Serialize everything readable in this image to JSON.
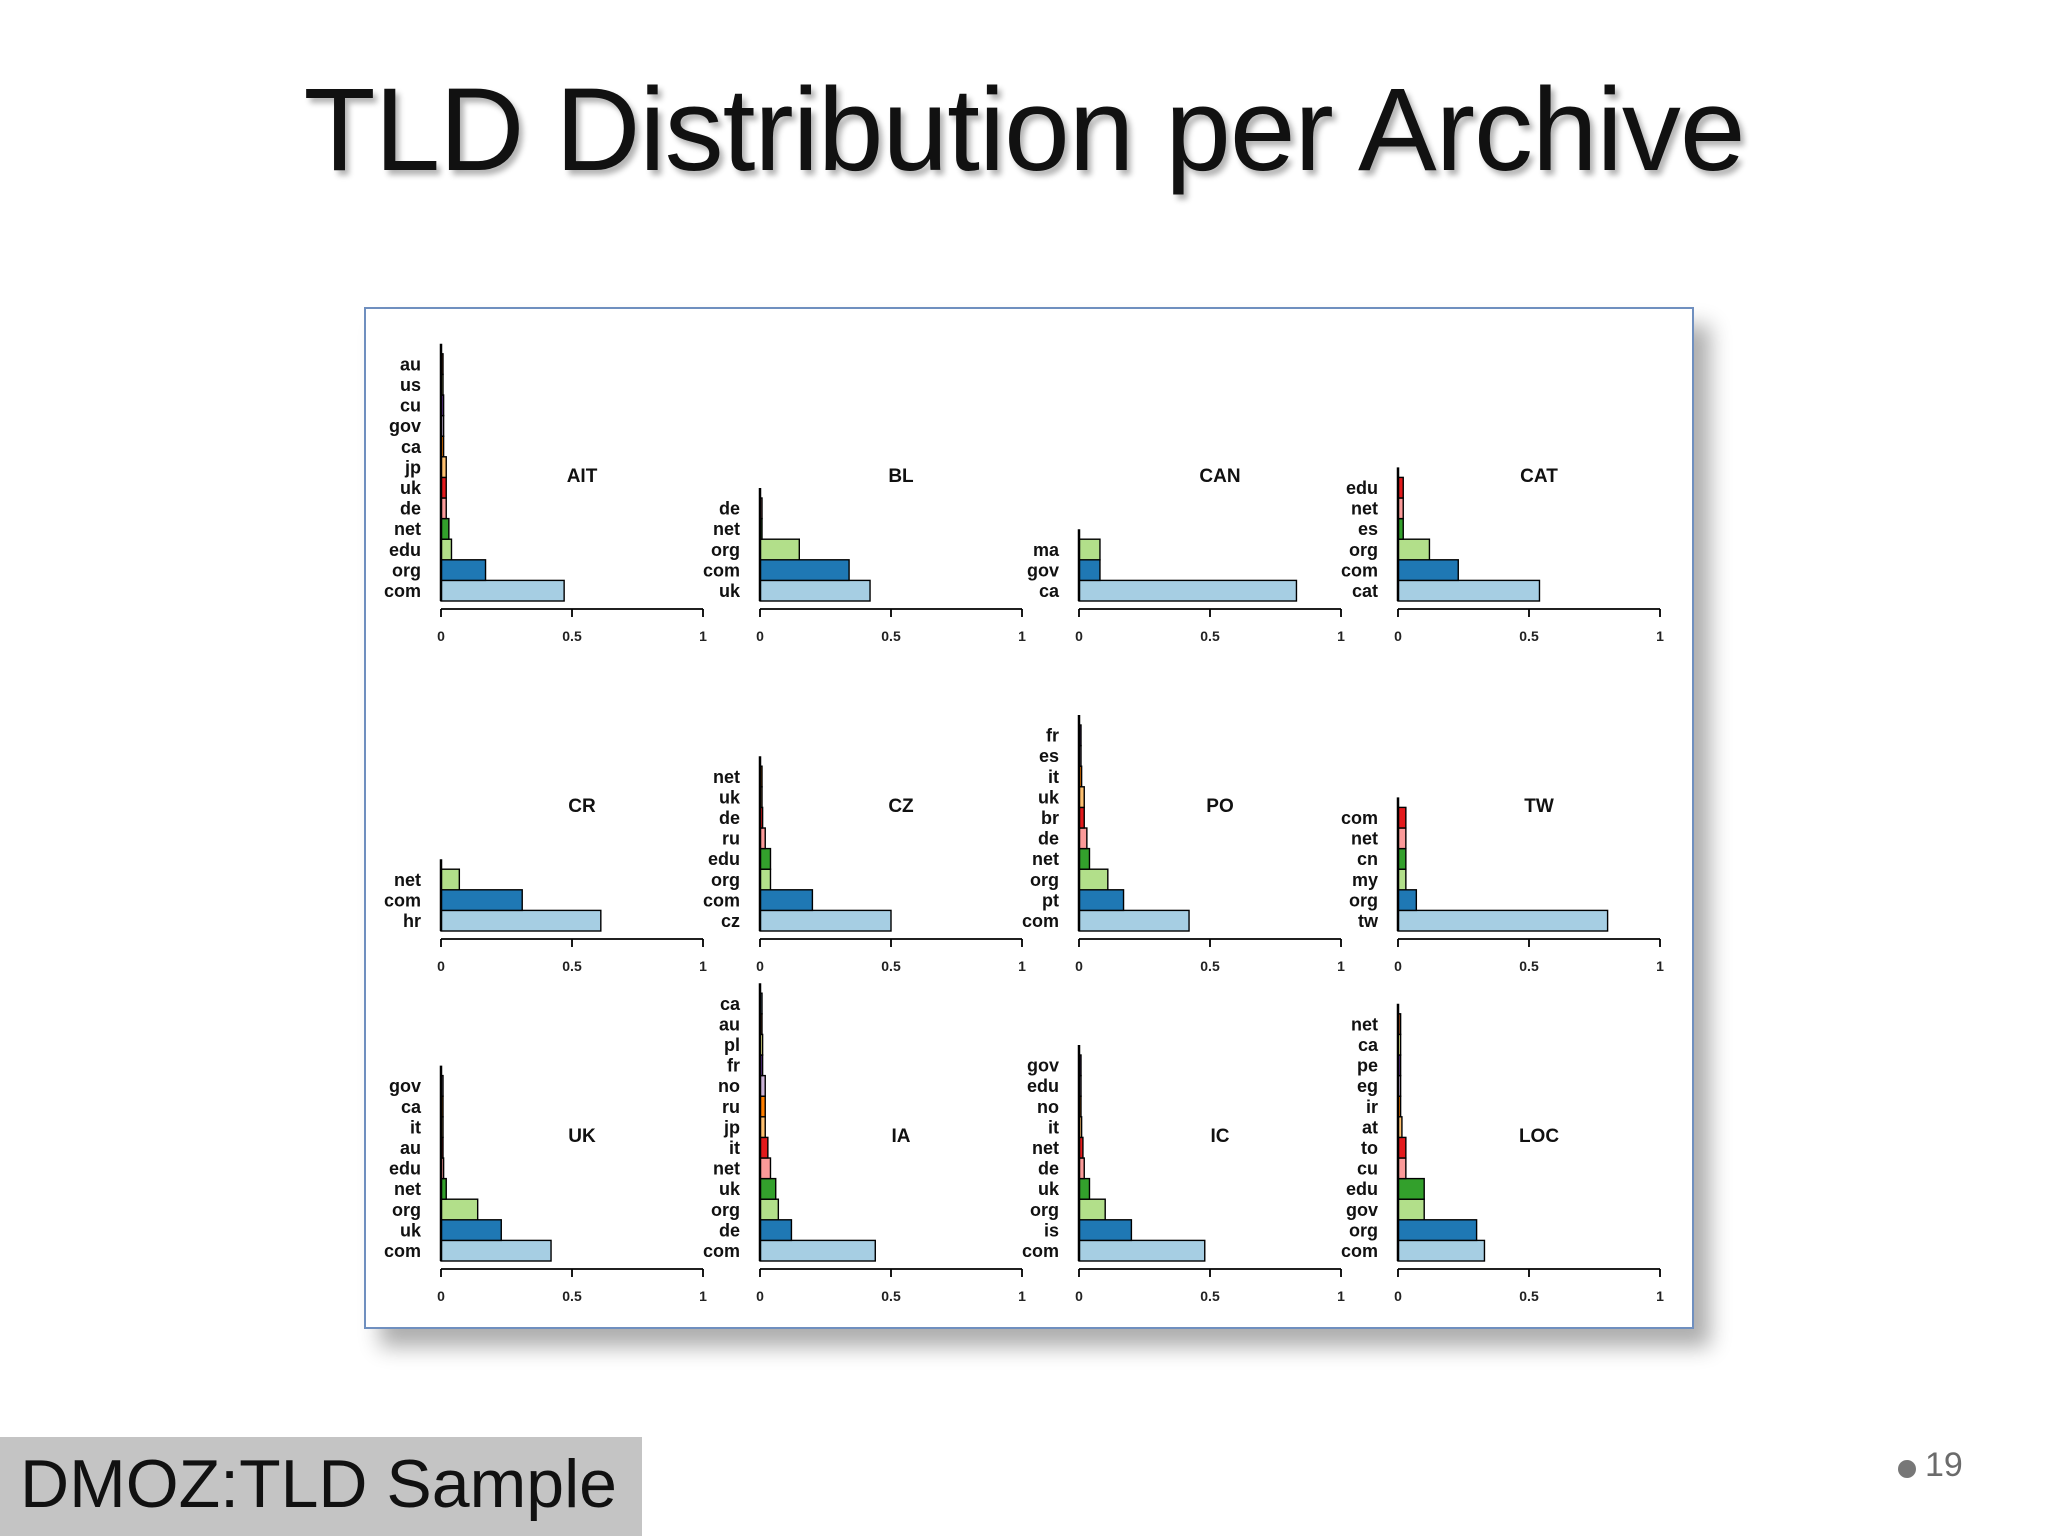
{
  "title": "TLD Distribution per Archive",
  "caption": "DMOZ:TLD Sample",
  "page_number": "19",
  "colors": {
    "frame_border": "#6f8fbf",
    "palette": [
      "#a6cee3",
      "#1f78b4",
      "#b2df8a",
      "#33a02c",
      "#fb9a99",
      "#e31a1c",
      "#fdbf6f",
      "#ff7f00",
      "#cab2d6",
      "#6a3d9a",
      "#ffff99",
      "#b15928"
    ]
  },
  "chart_data": [
    {
      "type": "bar",
      "orientation": "horizontal",
      "title": "AIT",
      "xlim": [
        0,
        1
      ],
      "xticks": [
        "0",
        "0.5",
        "1"
      ],
      "categories": [
        "com",
        "org",
        "edu",
        "net",
        "de",
        "uk",
        "jp",
        "ca",
        "gov",
        "cu",
        "us",
        "au"
      ],
      "values": [
        0.47,
        0.17,
        0.04,
        0.03,
        0.02,
        0.02,
        0.02,
        0.01,
        0.01,
        0.01,
        0.005,
        0.005
      ]
    },
    {
      "type": "bar",
      "orientation": "horizontal",
      "title": "BL",
      "xlim": [
        0,
        1
      ],
      "xticks": [
        "0",
        "0.5",
        "1"
      ],
      "categories": [
        "uk",
        "com",
        "org",
        "net",
        "de"
      ],
      "values": [
        0.42,
        0.34,
        0.15,
        0.005,
        0.005
      ]
    },
    {
      "type": "bar",
      "orientation": "horizontal",
      "title": "CAN",
      "xlim": [
        0,
        1
      ],
      "xticks": [
        "0",
        "0.5",
        "1"
      ],
      "categories": [
        "ca",
        "gov",
        "ma"
      ],
      "values": [
        0.83,
        0.08,
        0.08
      ]
    },
    {
      "type": "bar",
      "orientation": "horizontal",
      "title": "CAT",
      "xlim": [
        0,
        1
      ],
      "xticks": [
        "0",
        "0.5",
        "1"
      ],
      "categories": [
        "cat",
        "com",
        "org",
        "es",
        "net",
        "edu"
      ],
      "values": [
        0.54,
        0.23,
        0.12,
        0.02,
        0.02,
        0.02
      ]
    },
    {
      "type": "bar",
      "orientation": "horizontal",
      "title": "CR",
      "xlim": [
        0,
        1
      ],
      "xticks": [
        "0",
        "0.5",
        "1"
      ],
      "categories": [
        "hr",
        "com",
        "net"
      ],
      "values": [
        0.61,
        0.31,
        0.07
      ]
    },
    {
      "type": "bar",
      "orientation": "horizontal",
      "title": "CZ",
      "xlim": [
        0,
        1
      ],
      "xticks": [
        "0",
        "0.5",
        "1"
      ],
      "categories": [
        "cz",
        "com",
        "org",
        "edu",
        "ru",
        "de",
        "uk",
        "net"
      ],
      "values": [
        0.5,
        0.2,
        0.04,
        0.04,
        0.02,
        0.01,
        0.005,
        0.005
      ]
    },
    {
      "type": "bar",
      "orientation": "horizontal",
      "title": "PO",
      "xlim": [
        0,
        1
      ],
      "xticks": [
        "0",
        "0.5",
        "1"
      ],
      "categories": [
        "com",
        "pt",
        "org",
        "net",
        "de",
        "br",
        "uk",
        "it",
        "es",
        "fr"
      ],
      "values": [
        0.42,
        0.17,
        0.11,
        0.04,
        0.03,
        0.02,
        0.02,
        0.01,
        0.005,
        0.005
      ]
    },
    {
      "type": "bar",
      "orientation": "horizontal",
      "title": "TW",
      "xlim": [
        0,
        1
      ],
      "xticks": [
        "0",
        "0.5",
        "1"
      ],
      "categories": [
        "tw",
        "org",
        "my",
        "cn",
        "net",
        "com"
      ],
      "values": [
        0.8,
        0.07,
        0.03,
        0.03,
        0.03,
        0.03
      ]
    },
    {
      "type": "bar",
      "orientation": "horizontal",
      "title": "UK",
      "xlim": [
        0,
        1
      ],
      "xticks": [
        "0",
        "0.5",
        "1"
      ],
      "categories": [
        "com",
        "uk",
        "org",
        "net",
        "edu",
        "au",
        "it",
        "ca",
        "gov"
      ],
      "values": [
        0.42,
        0.23,
        0.14,
        0.02,
        0.01,
        0.005,
        0.005,
        0.005,
        0.005
      ]
    },
    {
      "type": "bar",
      "orientation": "horizontal",
      "title": "IA",
      "xlim": [
        0,
        1
      ],
      "xticks": [
        "0",
        "0.5",
        "1"
      ],
      "categories": [
        "com",
        "de",
        "org",
        "uk",
        "net",
        "it",
        "jp",
        "ru",
        "no",
        "fr",
        "pl",
        "au",
        "ca"
      ],
      "values": [
        0.44,
        0.12,
        0.07,
        0.06,
        0.04,
        0.03,
        0.02,
        0.02,
        0.02,
        0.01,
        0.01,
        0.005,
        0.005
      ]
    },
    {
      "type": "bar",
      "orientation": "horizontal",
      "title": "IC",
      "xlim": [
        0,
        1
      ],
      "xticks": [
        "0",
        "0.5",
        "1"
      ],
      "categories": [
        "com",
        "is",
        "org",
        "uk",
        "de",
        "net",
        "it",
        "no",
        "edu",
        "gov"
      ],
      "values": [
        0.48,
        0.2,
        0.1,
        0.04,
        0.02,
        0.015,
        0.01,
        0.005,
        0.005,
        0.005
      ]
    },
    {
      "type": "bar",
      "orientation": "horizontal",
      "title": "LOC",
      "xlim": [
        0,
        1
      ],
      "xticks": [
        "0",
        "0.5",
        "1"
      ],
      "categories": [
        "com",
        "org",
        "gov",
        "edu",
        "cu",
        "to",
        "at",
        "ir",
        "eg",
        "pe",
        "ca",
        "net"
      ],
      "values": [
        0.33,
        0.3,
        0.1,
        0.1,
        0.03,
        0.03,
        0.015,
        0.01,
        0.01,
        0.01,
        0.01,
        0.01
      ]
    }
  ]
}
